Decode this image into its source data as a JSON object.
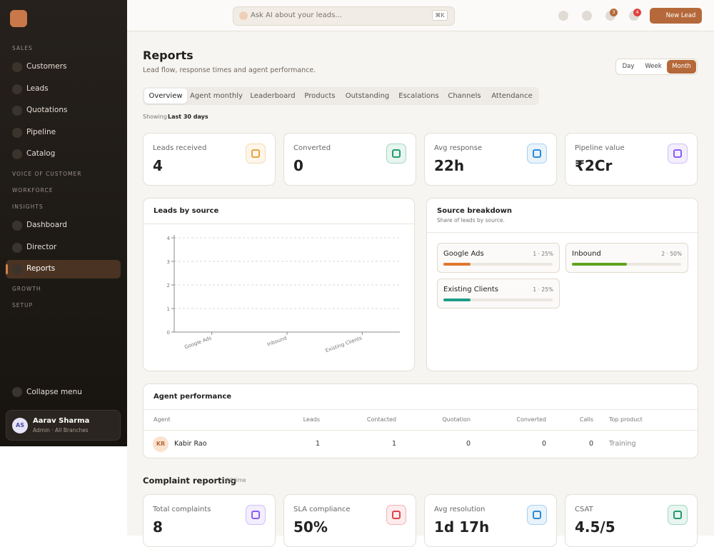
{
  "sidebar": {
    "sections": [
      {
        "label": "SALES",
        "items": [
          {
            "label": "Customers"
          },
          {
            "label": "Leads"
          },
          {
            "label": "Quotations"
          },
          {
            "label": "Pipeline"
          },
          {
            "label": "Catalog"
          }
        ]
      },
      {
        "label": "VOICE OF CUSTOMER",
        "items": []
      },
      {
        "label": "WORKFORCE",
        "items": []
      },
      {
        "label": "INSIGHTS",
        "items": [
          {
            "label": "Dashboard"
          },
          {
            "label": "Director"
          },
          {
            "label": "Reports",
            "active": true
          }
        ]
      },
      {
        "label": "GROWTH",
        "items": []
      },
      {
        "label": "SETUP",
        "items": []
      }
    ],
    "collapse": "Collapse menu",
    "user": {
      "initials": "AS",
      "name": "Aarav Sharma",
      "role": "Admin · All Branches"
    }
  },
  "topbar": {
    "search": "Ask AI about your leads...",
    "shortcut": "⌘K",
    "badges": [
      "3",
      "4"
    ],
    "button": "New Lead"
  },
  "header": {
    "title": "Reports",
    "subtitle": "Lead flow, response times and agent performance.",
    "range_options": [
      {
        "label": "Day"
      },
      {
        "label": "Week"
      },
      {
        "label": "Month",
        "active": true
      }
    ]
  },
  "tabs": [
    {
      "label": "Overview",
      "active": true
    },
    {
      "label": "Agent monthly"
    },
    {
      "label": "Leaderboard"
    },
    {
      "label": "Products"
    },
    {
      "label": "Outstanding"
    },
    {
      "label": "Escalations"
    },
    {
      "label": "Channels"
    },
    {
      "label": "Attendance"
    }
  ],
  "showing": {
    "prefix": "Showing",
    "value": "Last 30 days"
  },
  "kpis": [
    {
      "label": "Leads received",
      "value": "4",
      "color": "#e9a23b"
    },
    {
      "label": "Converted",
      "value": "0",
      "color": "#1f9d6b"
    },
    {
      "label": "Avg response",
      "value": "22h",
      "color": "#2b8ad6"
    },
    {
      "label": "Pipeline value",
      "value": "₹2Cr",
      "color": "#8b5cf6"
    }
  ],
  "chart_data": {
    "type": "bar",
    "title": "Leads by source",
    "categories": [
      "Google Ads",
      "Inbound",
      "Existing Clients"
    ],
    "ylim": [
      0,
      4
    ],
    "yticks": [
      0,
      1,
      2,
      3,
      4
    ],
    "grid": true
  },
  "source_breakdown": {
    "title": "Source breakdown",
    "subtitle": "Share of leads by source.",
    "items": [
      {
        "name": "Google Ads",
        "label": "1 · 25%",
        "percent": 25,
        "color": "#e0782b"
      },
      {
        "name": "Inbound",
        "label": "2 · 50%",
        "percent": 50,
        "color": "#5fa31f"
      },
      {
        "name": "Existing Clients",
        "label": "1 · 25%",
        "percent": 25,
        "color": "#1f9d8a"
      }
    ]
  },
  "agent_table": {
    "title": "Agent performance",
    "headers": [
      "Agent",
      "Leads",
      "Contacted",
      "Quotation",
      "Converted",
      "Calls",
      "Top product"
    ],
    "rows": [
      {
        "initials": "KR",
        "cells": [
          "Kabir Rao",
          "1",
          "1",
          "0",
          "0",
          "0",
          "Training"
        ]
      }
    ]
  },
  "complaints": {
    "title": "Complaint reporting",
    "subtitle": "All time",
    "kpis": [
      {
        "label": "Total complaints",
        "value": "8",
        "color": "#8b5cf6"
      },
      {
        "label": "SLA compliance",
        "value": "50%",
        "color": "#e0424b"
      },
      {
        "label": "Avg resolution",
        "value": "1d 17h",
        "color": "#2b8ad6"
      },
      {
        "label": "CSAT",
        "value": "4.5/5",
        "color": "#1f9d6b"
      }
    ]
  }
}
